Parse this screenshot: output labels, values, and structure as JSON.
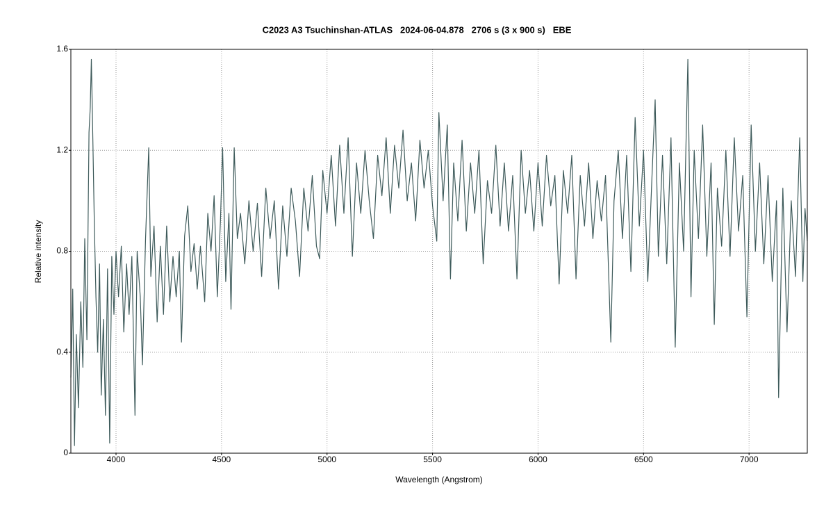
{
  "chart_data": {
    "type": "line",
    "title": "C2023 A3 Tsuchinshan-ATLAS   2024-06-04.878   2706 s (3 x 900 s)   EBE",
    "xlabel": "Wavelength (Angstrom)",
    "ylabel": "Relative intensity",
    "xlim": [
      3786,
      7276
    ],
    "ylim": [
      0,
      1.6
    ],
    "xticks": [
      4000,
      4500,
      5000,
      5500,
      6000,
      6500,
      7000
    ],
    "yticks": [
      0,
      0.4,
      0.8,
      1.2,
      1.6
    ],
    "grid": true,
    "color": "#3d5a5a",
    "x": [
      3786,
      3795,
      3803,
      3812,
      3822,
      3833,
      3843,
      3852,
      3862,
      3872,
      3878,
      3883,
      3890,
      3897,
      3905,
      3913,
      3922,
      3930,
      3940,
      3950,
      3960,
      3970,
      3980,
      3990,
      4000,
      4012,
      4025,
      4037,
      4050,
      4062,
      4075,
      4090,
      4100,
      4115,
      4125,
      4140,
      4155,
      4165,
      4180,
      4195,
      4210,
      4225,
      4240,
      4255,
      4270,
      4285,
      4300,
      4310,
      4325,
      4340,
      4355,
      4370,
      4385,
      4400,
      4420,
      4435,
      4450,
      4465,
      4480,
      4495,
      4505,
      4520,
      4535,
      4545,
      4560,
      4575,
      4590,
      4610,
      4630,
      4650,
      4670,
      4690,
      4710,
      4730,
      4750,
      4770,
      4790,
      4810,
      4830,
      4850,
      4870,
      4890,
      4910,
      4930,
      4950,
      4965,
      4980,
      5000,
      5020,
      5040,
      5060,
      5080,
      5100,
      5120,
      5140,
      5160,
      5180,
      5200,
      5220,
      5240,
      5260,
      5280,
      5300,
      5320,
      5340,
      5360,
      5380,
      5400,
      5420,
      5440,
      5460,
      5480,
      5500,
      5520,
      5530,
      5550,
      5570,
      5585,
      5600,
      5620,
      5640,
      5660,
      5680,
      5700,
      5720,
      5740,
      5760,
      5780,
      5800,
      5820,
      5840,
      5860,
      5880,
      5900,
      5920,
      5940,
      5960,
      5980,
      6000,
      6020,
      6040,
      6060,
      6080,
      6100,
      6120,
      6140,
      6160,
      6180,
      6200,
      6220,
      6240,
      6260,
      6280,
      6300,
      6320,
      6345,
      6360,
      6380,
      6400,
      6420,
      6440,
      6460,
      6480,
      6500,
      6520,
      6540,
      6555,
      6570,
      6590,
      6610,
      6630,
      6650,
      6670,
      6690,
      6710,
      6725,
      6740,
      6760,
      6780,
      6800,
      6820,
      6835,
      6850,
      6870,
      6890,
      6910,
      6930,
      6950,
      6970,
      6990,
      7010,
      7030,
      7050,
      7070,
      7090,
      7110,
      7130,
      7140,
      7160,
      7180,
      7200,
      7220,
      7240,
      7255,
      7265,
      7276
    ],
    "values": [
      0.3,
      0.65,
      0.03,
      0.47,
      0.18,
      0.6,
      0.34,
      0.85,
      0.45,
      1.27,
      1.37,
      1.56,
      1.25,
      0.92,
      0.62,
      0.4,
      0.75,
      0.23,
      0.53,
      0.15,
      0.73,
      0.04,
      0.78,
      0.55,
      0.8,
      0.62,
      0.82,
      0.48,
      0.75,
      0.55,
      0.78,
      0.15,
      0.8,
      0.62,
      0.35,
      0.85,
      1.21,
      0.7,
      0.9,
      0.52,
      0.82,
      0.55,
      0.9,
      0.6,
      0.78,
      0.62,
      0.8,
      0.44,
      0.86,
      0.98,
      0.72,
      0.83,
      0.65,
      0.82,
      0.6,
      0.95,
      0.8,
      1.02,
      0.62,
      0.92,
      1.21,
      0.68,
      0.95,
      0.57,
      1.21,
      0.85,
      0.95,
      0.75,
      1.0,
      0.8,
      0.99,
      0.7,
      1.05,
      0.85,
      1.0,
      0.65,
      0.98,
      0.78,
      1.05,
      0.92,
      0.7,
      1.05,
      0.88,
      1.1,
      0.82,
      0.77,
      1.12,
      0.95,
      1.18,
      0.9,
      1.22,
      0.95,
      1.25,
      0.78,
      1.15,
      0.95,
      1.2,
      1.0,
      0.85,
      1.18,
      1.02,
      1.25,
      0.95,
      1.22,
      1.05,
      1.28,
      1.0,
      1.15,
      0.92,
      1.24,
      1.05,
      1.2,
      0.98,
      0.84,
      1.35,
      1.0,
      1.3,
      0.69,
      1.15,
      0.92,
      1.24,
      0.88,
      1.15,
      0.95,
      1.2,
      0.75,
      1.08,
      0.95,
      1.22,
      0.9,
      1.15,
      0.88,
      1.1,
      0.69,
      1.2,
      0.95,
      1.12,
      0.88,
      1.15,
      0.9,
      1.18,
      0.98,
      1.1,
      0.67,
      1.12,
      0.95,
      1.18,
      0.69,
      1.1,
      0.9,
      1.15,
      0.85,
      1.08,
      0.92,
      1.1,
      0.44,
      1.0,
      1.2,
      0.85,
      1.18,
      0.72,
      1.33,
      0.9,
      1.2,
      0.68,
      1.1,
      1.4,
      0.78,
      1.18,
      0.75,
      1.25,
      0.42,
      1.15,
      0.8,
      1.56,
      0.62,
      1.2,
      0.85,
      1.3,
      0.78,
      1.15,
      0.51,
      1.05,
      0.82,
      1.2,
      0.78,
      1.25,
      0.88,
      1.1,
      0.54,
      1.3,
      0.8,
      1.15,
      0.75,
      1.1,
      0.68,
      1.0,
      0.22,
      1.05,
      0.48,
      1.0,
      0.7,
      1.25,
      0.68,
      0.97,
      0.84
    ]
  }
}
